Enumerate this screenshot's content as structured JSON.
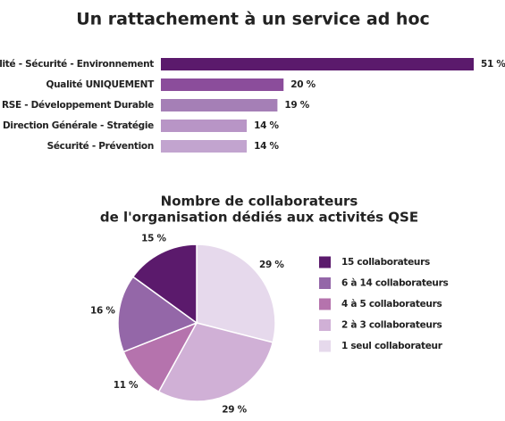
{
  "chart_data": [
    {
      "type": "hbar",
      "title": "Un rattachement à un service ad hoc",
      "categories": [
        "Qualité - Sécurité - Environnement",
        "Qualité UNIQUEMENT",
        "RSE - Développement Durable",
        "Direction Générale - Stratégie",
        "Sécurité - Prévention"
      ],
      "values": [
        51,
        20,
        19,
        14,
        14
      ],
      "value_labels": [
        "51 %",
        "20 %",
        "19 %",
        "14 %",
        "14 %"
      ],
      "colors": [
        "#5b1a6c",
        "#8b4d9b",
        "#a57fb6",
        "#b895c6",
        "#c2a4cf"
      ]
    },
    {
      "type": "pie",
      "title": [
        "Nombre de collaborateurs",
        "de l'organisation dédiés aux activités QSE"
      ],
      "series": [
        {
          "name": "15 collaborateurs",
          "color": "#5b1a6c",
          "value": 15,
          "value_label": "15 %"
        },
        {
          "name": "6 à 14 collaborateurs",
          "color": "#9467a8",
          "value": 16,
          "value_label": "16 %"
        },
        {
          "name": "4 à 5 collaborateurs",
          "color": "#b573ad",
          "value": 11,
          "value_label": "11 %"
        },
        {
          "name": "2 à 3 collaborateurs",
          "color": "#d0b0d6",
          "value": 29,
          "value_label": "29 %"
        },
        {
          "name": "1 seul collaborateur",
          "color": "#e6d9ec",
          "value": 29,
          "value_label": "29 %"
        }
      ]
    }
  ]
}
